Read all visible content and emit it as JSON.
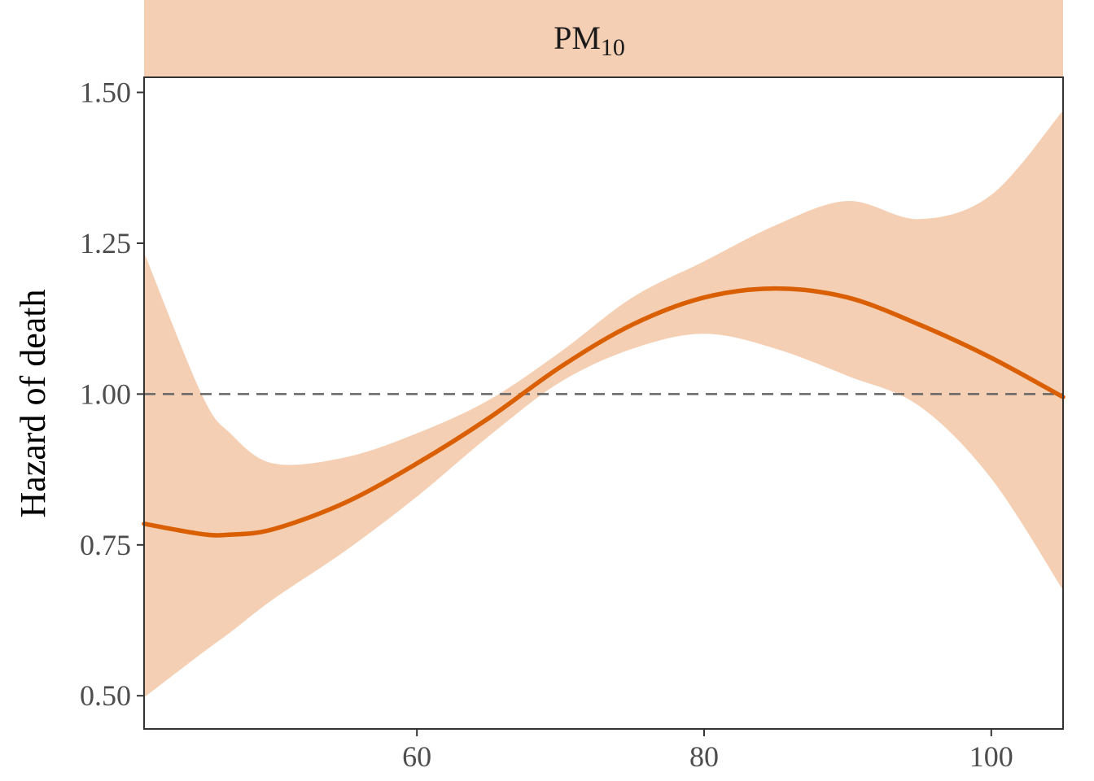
{
  "chart_data": {
    "type": "line",
    "facet_label": "PM",
    "facet_label_subscript": "10",
    "xlabel": "",
    "ylabel": "Hazard of death",
    "xlim": [
      41,
      105
    ],
    "ylim": [
      0.445,
      1.525
    ],
    "x_ticks": [
      60,
      80,
      100
    ],
    "x_tick_labels": [
      "60",
      "80",
      "100"
    ],
    "y_ticks": [
      0.5,
      0.75,
      1.0,
      1.25,
      1.5
    ],
    "y_tick_labels": [
      "0.50",
      "0.75",
      "1.00",
      "1.25",
      "1.50"
    ],
    "reference_line": {
      "y": 1.0,
      "style": "dashed"
    },
    "grid": false,
    "series": [
      {
        "x": [
          41,
          45,
          47,
          50,
          55,
          60,
          65,
          70,
          75,
          80,
          85,
          90,
          95,
          100,
          105
        ],
        "y": [
          0.785,
          0.768,
          0.767,
          0.776,
          0.82,
          0.885,
          0.96,
          1.045,
          1.115,
          1.16,
          1.175,
          1.16,
          1.115,
          1.06,
          0.995
        ],
        "lower": [
          0.497,
          0.57,
          0.605,
          0.66,
          0.74,
          0.83,
          0.93,
          1.02,
          1.075,
          1.1,
          1.075,
          1.03,
          0.98,
          0.86,
          0.675
        ],
        "upper": [
          1.235,
          1.0,
          0.935,
          0.885,
          0.895,
          0.935,
          0.99,
          1.07,
          1.16,
          1.22,
          1.28,
          1.32,
          1.29,
          1.33,
          1.47
        ]
      }
    ],
    "colors": {
      "line": "#d95f02",
      "ribbon": "#f4cfb3",
      "strip": "#f4cfb3",
      "reference": "#666666",
      "axis": "#333333"
    }
  }
}
